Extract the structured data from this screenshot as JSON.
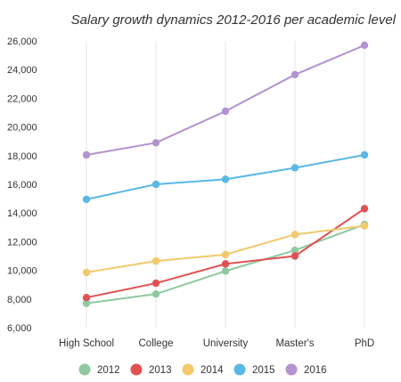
{
  "chart_data": {
    "type": "line",
    "title": "Salary growth dynamics 2012-2016 per academic level",
    "xlabel": "",
    "ylabel": "",
    "categories": [
      "High School",
      "College",
      "University",
      "Master's",
      "PhD"
    ],
    "ylim": [
      6000,
      26000
    ],
    "yticks": [
      6000,
      8000,
      10000,
      12000,
      14000,
      16000,
      18000,
      20000,
      22000,
      24000,
      26000
    ],
    "ytick_labels": [
      "6,000",
      "8,000",
      "10,000",
      "12,000",
      "14,000",
      "16,000",
      "18,000",
      "20,000",
      "22,000",
      "24,000",
      "26,000"
    ],
    "grid": "vertical",
    "legend": "bottom",
    "series": [
      {
        "name": "2012",
        "color": "#8ec9a0",
        "values": [
          7700,
          8350,
          9950,
          11400,
          13200
        ]
      },
      {
        "name": "2013",
        "color": "#e05252",
        "values": [
          8100,
          9100,
          10450,
          11000,
          14300
        ]
      },
      {
        "name": "2014",
        "color": "#f2c96b",
        "values": [
          9850,
          10650,
          11100,
          12500,
          13100
        ]
      },
      {
        "name": "2015",
        "color": "#5ab8e6",
        "values": [
          14950,
          16000,
          16350,
          17150,
          18050
        ]
      },
      {
        "name": "2016",
        "color": "#b393cf",
        "values": [
          18050,
          18900,
          21100,
          23650,
          25700
        ]
      }
    ]
  }
}
